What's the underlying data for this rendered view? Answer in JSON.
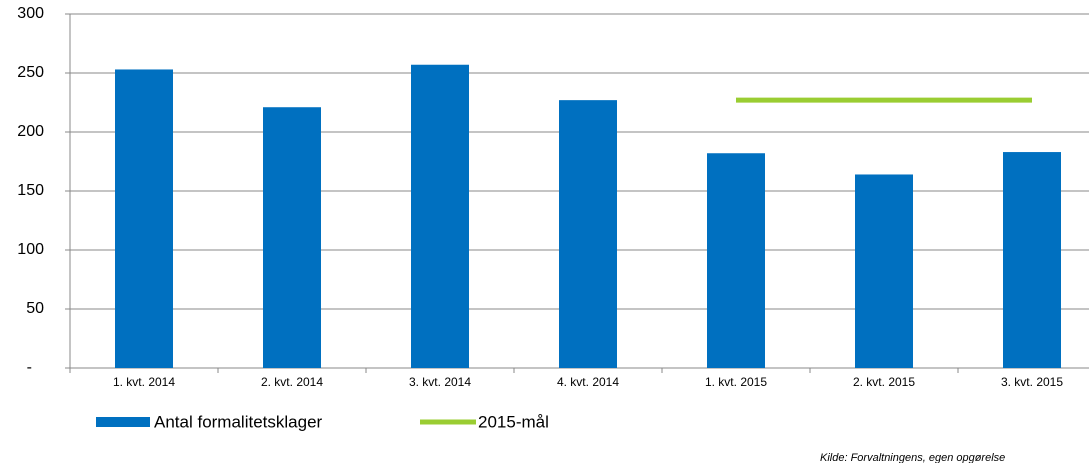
{
  "chart_data": {
    "type": "bar",
    "categories": [
      "1. kvt. 2014",
      "2. kvt. 2014",
      "3. kvt. 2014",
      "4. kvt. 2014",
      "1. kvt. 2015",
      "2. kvt. 2015",
      "3. kvt. 2015"
    ],
    "series": [
      {
        "name": "Antal formalitetsklager",
        "type": "bar",
        "color": "#0070c0",
        "values": [
          253,
          221,
          257,
          227,
          182,
          164,
          183
        ]
      },
      {
        "name": "2015-mål",
        "type": "line",
        "color": "#9acd32",
        "values": [
          null,
          null,
          null,
          null,
          227,
          227,
          227
        ]
      }
    ],
    "ylim": [
      0,
      300
    ],
    "yticks": [
      {
        "value": 0,
        "label": "-"
      },
      50,
      100,
      150,
      200,
      250,
      300
    ],
    "grid": true,
    "legend": "bottom",
    "source": "Kilde: Forvaltningens, egen opgørelse"
  }
}
